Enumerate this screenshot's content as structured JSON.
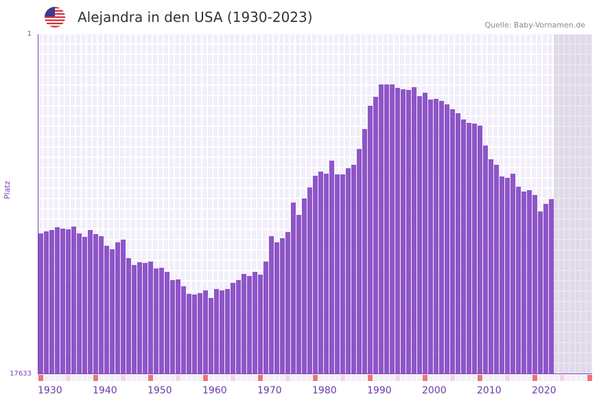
{
  "header": {
    "title": "Alejandra in den USA (1930-2023)",
    "source": "Quelle: Baby-Vornamen.de",
    "flag_icon": "us-flag-icon"
  },
  "colors": {
    "bar": "#8e55c7",
    "axis": "#7e3fb5",
    "decade_marker": "#e8767a",
    "half_decade_marker": "#f5d5dc"
  },
  "chart_data": {
    "type": "bar",
    "title": "Alejandra in den USA (1930-2023)",
    "xlabel": "",
    "ylabel": "Platz",
    "ylim": [
      1,
      17633
    ],
    "y_inverted": true,
    "yticks": [
      "1",
      "17633"
    ],
    "xticks": [
      "1930",
      "1940",
      "1950",
      "1960",
      "1970",
      "1980",
      "1990",
      "2000",
      "2010",
      "2020"
    ],
    "x_start": 1930,
    "x_end_axis": 2030,
    "grid": true,
    "values": [
      10331,
      10224,
      10153,
      10010,
      10081,
      10117,
      9975,
      10331,
      10509,
      10153,
      10366,
      10473,
      10972,
      11150,
      10794,
      10651,
      11613,
      11969,
      11827,
      11862,
      11791,
      12147,
      12112,
      12326,
      12753,
      12717,
      13073,
      13465,
      13501,
      13430,
      13287,
      13679,
      13216,
      13287,
      13216,
      12896,
      12753,
      12433,
      12540,
      12326,
      12468,
      11791,
      10473,
      10794,
      10581,
      10260,
      8728,
      9369,
      8514,
      7944,
      7339,
      7125,
      7232,
      6555,
      7267,
      7267,
      6947,
      6769,
      5950,
      4916,
      3705,
      3242,
      2601,
      2601,
      2601,
      2779,
      2850,
      2886,
      2744,
      3207,
      3029,
      3385,
      3349,
      3456,
      3634,
      3884,
      4097,
      4418,
      4596,
      4632,
      4738,
      5771,
      6484,
      6769,
      7374,
      7446,
      7232,
      7908,
      8158,
      8086,
      8336,
      9191,
      8799,
      8550
    ]
  }
}
